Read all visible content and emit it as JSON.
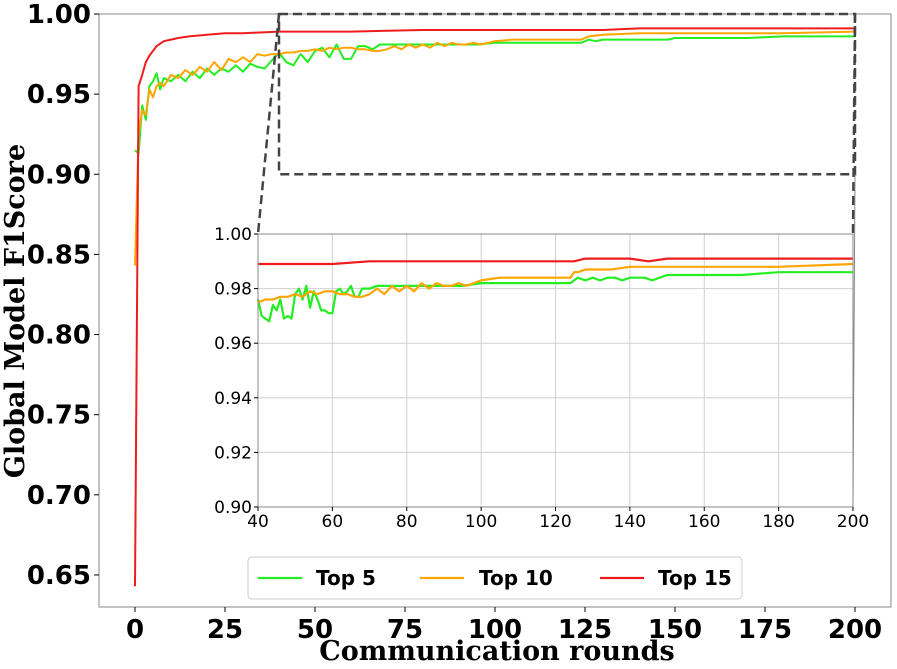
{
  "chart_data": [
    {
      "type": "line",
      "xlabel": "Communication rounds",
      "ylabel": "Global Model F1Score",
      "xlim": [
        -10,
        210
      ],
      "ylim": [
        0.63,
        1.0
      ],
      "xticks": [
        0,
        25,
        50,
        75,
        100,
        125,
        150,
        175,
        200
      ],
      "yticks": [
        0.65,
        0.7,
        0.75,
        0.8,
        0.85,
        0.9,
        0.95,
        1.0
      ],
      "ytick_labels": [
        "0.65",
        "0.70",
        "0.75",
        "0.80",
        "0.85",
        "0.90",
        "0.95",
        "1.00"
      ],
      "grid": false,
      "legend": {
        "position": "bottom-center",
        "columns": 3
      },
      "zoom_region": {
        "x": [
          40,
          200
        ],
        "y": [
          0.9,
          1.0
        ]
      },
      "series": [
        {
          "name": "Top 5",
          "color": "#22ee22",
          "x": [
            0,
            1,
            2,
            3,
            4,
            5,
            6,
            7,
            8,
            10,
            12,
            14,
            16,
            18,
            20,
            22,
            24,
            26,
            28,
            30,
            32,
            34,
            36,
            38,
            40,
            42,
            44,
            46,
            48,
            50,
            52,
            54,
            56,
            58,
            60,
            62,
            64,
            66,
            68,
            70,
            75,
            80,
            85,
            90,
            95,
            100,
            110,
            120,
            124,
            126,
            128,
            130,
            135,
            140,
            145,
            148,
            150,
            160,
            170,
            180,
            190,
            200
          ],
          "y": [
            0.915,
            0.913,
            0.943,
            0.934,
            0.955,
            0.958,
            0.963,
            0.953,
            0.96,
            0.958,
            0.962,
            0.958,
            0.964,
            0.96,
            0.966,
            0.962,
            0.966,
            0.964,
            0.968,
            0.964,
            0.969,
            0.967,
            0.966,
            0.971,
            0.976,
            0.97,
            0.968,
            0.975,
            0.97,
            0.977,
            0.979,
            0.973,
            0.981,
            0.972,
            0.972,
            0.98,
            0.98,
            0.978,
            0.981,
            0.981,
            0.981,
            0.981,
            0.981,
            0.981,
            0.981,
            0.982,
            0.982,
            0.982,
            0.982,
            0.984,
            0.983,
            0.984,
            0.984,
            0.984,
            0.984,
            0.984,
            0.985,
            0.985,
            0.985,
            0.986,
            0.986,
            0.986
          ]
        },
        {
          "name": "Top 10",
          "color": "#ffa500",
          "x": [
            0,
            1,
            2,
            3,
            4,
            5,
            6,
            7,
            8,
            10,
            12,
            14,
            16,
            18,
            20,
            22,
            24,
            26,
            28,
            30,
            32,
            34,
            36,
            38,
            40,
            42,
            44,
            46,
            48,
            50,
            52,
            54,
            56,
            58,
            60,
            62,
            64,
            66,
            68,
            70,
            72,
            74,
            76,
            78,
            80,
            82,
            84,
            86,
            88,
            90,
            92,
            94,
            96,
            98,
            100,
            105,
            110,
            120,
            124,
            126,
            130,
            140,
            150,
            160,
            180,
            200
          ],
          "y": [
            0.843,
            0.925,
            0.94,
            0.937,
            0.953,
            0.948,
            0.955,
            0.957,
            0.955,
            0.962,
            0.96,
            0.965,
            0.962,
            0.967,
            0.964,
            0.97,
            0.965,
            0.972,
            0.97,
            0.973,
            0.97,
            0.975,
            0.974,
            0.975,
            0.975,
            0.976,
            0.976,
            0.977,
            0.977,
            0.978,
            0.977,
            0.979,
            0.978,
            0.979,
            0.979,
            0.978,
            0.978,
            0.977,
            0.977,
            0.978,
            0.98,
            0.978,
            0.981,
            0.979,
            0.981,
            0.979,
            0.982,
            0.98,
            0.982,
            0.981,
            0.981,
            0.982,
            0.981,
            0.982,
            0.983,
            0.984,
            0.984,
            0.984,
            0.984,
            0.986,
            0.987,
            0.988,
            0.988,
            0.988,
            0.988,
            0.989
          ]
        },
        {
          "name": "Top 15",
          "color": "#ee1c1c",
          "x": [
            0,
            1,
            2,
            3,
            4,
            5,
            6,
            8,
            10,
            12,
            15,
            20,
            25,
            30,
            40,
            50,
            60,
            80,
            100,
            120,
            130,
            140,
            160,
            180,
            200
          ],
          "y": [
            0.643,
            0.955,
            0.962,
            0.97,
            0.974,
            0.977,
            0.98,
            0.983,
            0.984,
            0.985,
            0.986,
            0.987,
            0.988,
            0.988,
            0.989,
            0.989,
            0.989,
            0.99,
            0.99,
            0.99,
            0.99,
            0.991,
            0.991,
            0.991,
            0.991
          ]
        }
      ]
    },
    {
      "type": "line",
      "xlim": [
        40,
        200
      ],
      "ylim": [
        0.9,
        1.0
      ],
      "xticks": [
        40,
        60,
        80,
        100,
        120,
        140,
        160,
        180,
        200
      ],
      "yticks": [
        0.9,
        0.92,
        0.94,
        0.96,
        0.98,
        1.0
      ],
      "ytick_labels": [
        "0.90",
        "0.92",
        "0.94",
        "0.96",
        "0.98",
        "1.00"
      ],
      "grid": true,
      "series": [
        {
          "name": "Top 5",
          "color": "#22ee22",
          "x": [
            40,
            41,
            42,
            43,
            44,
            45,
            46,
            47,
            48,
            49,
            50,
            51,
            52,
            53,
            54,
            55,
            56,
            57,
            58,
            59,
            60,
            61,
            62,
            63,
            64,
            65,
            66,
            67,
            68,
            69,
            70,
            72,
            75,
            78,
            80,
            85,
            90,
            95,
            100,
            110,
            120,
            122,
            124,
            126,
            128,
            130,
            132,
            134,
            136,
            138,
            140,
            142,
            144,
            146,
            148,
            150,
            160,
            170,
            180,
            190,
            200
          ],
          "y": [
            0.976,
            0.97,
            0.969,
            0.968,
            0.974,
            0.972,
            0.976,
            0.969,
            0.97,
            0.969,
            0.978,
            0.98,
            0.976,
            0.981,
            0.973,
            0.979,
            0.976,
            0.972,
            0.972,
            0.971,
            0.971,
            0.979,
            0.98,
            0.978,
            0.979,
            0.981,
            0.977,
            0.977,
            0.98,
            0.98,
            0.98,
            0.981,
            0.981,
            0.981,
            0.981,
            0.981,
            0.981,
            0.981,
            0.982,
            0.982,
            0.982,
            0.982,
            0.982,
            0.984,
            0.983,
            0.984,
            0.983,
            0.984,
            0.984,
            0.983,
            0.984,
            0.984,
            0.984,
            0.983,
            0.984,
            0.985,
            0.985,
            0.985,
            0.986,
            0.986,
            0.986
          ]
        },
        {
          "name": "Top 10",
          "color": "#ffa500",
          "x": [
            40,
            42,
            44,
            46,
            48,
            50,
            52,
            54,
            56,
            58,
            60,
            62,
            64,
            66,
            68,
            70,
            72,
            74,
            76,
            78,
            80,
            82,
            84,
            86,
            88,
            90,
            92,
            94,
            96,
            98,
            100,
            105,
            110,
            115,
            120,
            124,
            125,
            126,
            128,
            130,
            135,
            140,
            145,
            150,
            160,
            180,
            200
          ],
          "y": [
            0.975,
            0.976,
            0.976,
            0.977,
            0.977,
            0.978,
            0.977,
            0.979,
            0.978,
            0.979,
            0.979,
            0.978,
            0.978,
            0.977,
            0.977,
            0.978,
            0.98,
            0.978,
            0.981,
            0.979,
            0.981,
            0.979,
            0.982,
            0.98,
            0.982,
            0.981,
            0.981,
            0.982,
            0.981,
            0.982,
            0.983,
            0.984,
            0.984,
            0.984,
            0.984,
            0.984,
            0.986,
            0.986,
            0.987,
            0.987,
            0.987,
            0.988,
            0.988,
            0.988,
            0.988,
            0.988,
            0.989
          ]
        },
        {
          "name": "Top 15",
          "color": "#ee1c1c",
          "x": [
            40,
            45,
            50,
            55,
            60,
            70,
            80,
            90,
            100,
            110,
            120,
            125,
            128,
            130,
            135,
            140,
            145,
            150,
            160,
            170,
            180,
            190,
            200
          ],
          "y": [
            0.989,
            0.989,
            0.989,
            0.989,
            0.989,
            0.99,
            0.99,
            0.99,
            0.99,
            0.99,
            0.99,
            0.99,
            0.991,
            0.991,
            0.991,
            0.991,
            0.99,
            0.991,
            0.991,
            0.991,
            0.991,
            0.991,
            0.991
          ]
        }
      ]
    }
  ]
}
